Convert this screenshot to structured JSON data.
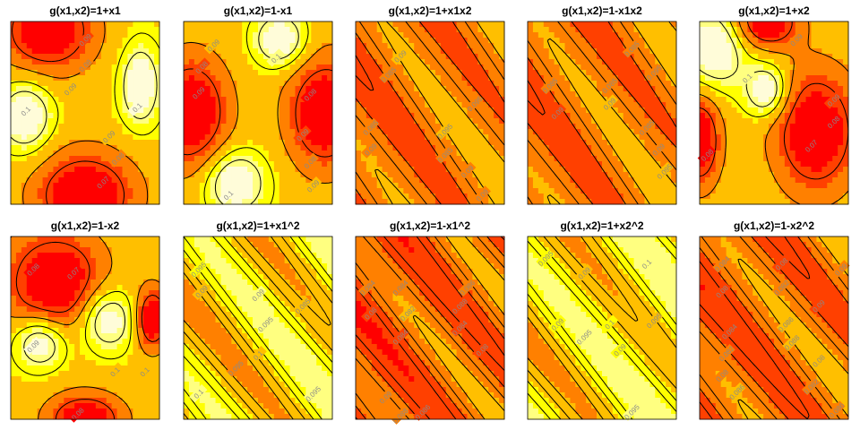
{
  "figure": {
    "palette": [
      "#ff0000",
      "#ff4000",
      "#ff8000",
      "#ffbf00",
      "#ffff00",
      "#ffff80",
      "#fffcd9"
    ],
    "contour_color": "#000000",
    "label_color": "#8a8a8a"
  },
  "chart_data": [
    {
      "type": "heatmap",
      "title": "g(x1,x2)=1+x1",
      "pattern": "blobs",
      "warm": [
        [
          0.25,
          0.05,
          0.22,
          0.16
        ],
        [
          0.5,
          0.95,
          0.24,
          0.17
        ]
      ],
      "cool": [
        [
          0.1,
          0.52,
          0.12,
          0.13
        ],
        [
          0.87,
          0.35,
          0.09,
          0.15
        ]
      ],
      "contour_labels": [
        {
          "text": "0.09",
          "at": [
            0.5,
            0.1
          ]
        },
        {
          "text": "0.08",
          "at": [
            0.5,
            0.24
          ]
        },
        {
          "text": "0.09",
          "at": [
            0.4,
            0.37
          ]
        },
        {
          "text": "0.1",
          "at": [
            0.1,
            0.49
          ]
        },
        {
          "text": "0.1",
          "at": [
            0.85,
            0.47
          ]
        },
        {
          "text": "0.09",
          "at": [
            0.66,
            0.63
          ]
        },
        {
          "text": "0.08",
          "at": [
            0.72,
            0.75
          ]
        },
        {
          "text": "0.07",
          "at": [
            0.62,
            0.88
          ]
        }
      ]
    },
    {
      "type": "heatmap",
      "title": "g(x1,x2)=1-x1",
      "pattern": "blobs",
      "warm": [
        [
          0.05,
          0.5,
          0.18,
          0.22
        ],
        [
          0.95,
          0.5,
          0.18,
          0.22
        ]
      ],
      "cool": [
        [
          0.65,
          0.1,
          0.12,
          0.1
        ],
        [
          0.35,
          0.88,
          0.14,
          0.12
        ]
      ],
      "contour_labels": [
        {
          "text": "0.09",
          "at": [
            0.2,
            0.13
          ]
        },
        {
          "text": "0.1",
          "at": [
            0.62,
            0.2
          ]
        },
        {
          "text": "0.08",
          "at": [
            0.12,
            0.25
          ]
        },
        {
          "text": "0.09",
          "at": [
            0.1,
            0.39
          ]
        },
        {
          "text": "0.08",
          "at": [
            0.85,
            0.4
          ]
        },
        {
          "text": "0.09",
          "at": [
            0.8,
            0.62
          ]
        },
        {
          "text": "0.08",
          "at": [
            0.85,
            0.77
          ]
        },
        {
          "text": "0.09",
          "at": [
            0.87,
            0.9
          ]
        },
        {
          "text": "0.1",
          "at": [
            0.3,
            0.95
          ]
        }
      ]
    },
    {
      "type": "heatmap",
      "title": "g(x1,x2)=1+x1x2",
      "pattern": "diagonal",
      "base": 0.35,
      "amp": 0.12,
      "freq": 1.3,
      "phase": 0.2,
      "slope": 0.9,
      "contour_labels": [
        {
          "text": "0.09",
          "at": [
            0.3,
            0.19
          ]
        },
        {
          "text": "0.085",
          "at": [
            0.22,
            0.29
          ]
        },
        {
          "text": "0.095",
          "at": [
            0.8,
            0.45
          ]
        },
        {
          "text": "0.085",
          "at": [
            0.1,
            0.58
          ]
        },
        {
          "text": "0.09",
          "at": [
            0.1,
            0.7
          ]
        },
        {
          "text": "0.095",
          "at": [
            0.6,
            0.6
          ]
        },
        {
          "text": "0.085",
          "at": [
            0.6,
            0.73
          ]
        },
        {
          "text": "0.09",
          "at": [
            0.75,
            0.82
          ]
        },
        {
          "text": "0.09",
          "at": [
            0.85,
            0.95
          ]
        }
      ]
    },
    {
      "type": "heatmap",
      "title": "g(x1,x2)=1-x1x2",
      "pattern": "diagonal",
      "base": 0.35,
      "amp": 0.12,
      "freq": 1.3,
      "phase": 1.2,
      "slope": 0.9,
      "contour_labels": [
        {
          "text": "0.085",
          "at": [
            0.15,
            0.35
          ]
        },
        {
          "text": "0.09",
          "at": [
            0.2,
            0.5
          ]
        },
        {
          "text": "0.085",
          "at": [
            0.7,
            0.15
          ]
        },
        {
          "text": "0.095",
          "at": [
            0.85,
            0.28
          ]
        },
        {
          "text": "0.085",
          "at": [
            0.55,
            0.35
          ]
        },
        {
          "text": "0.09",
          "at": [
            0.55,
            0.45
          ]
        },
        {
          "text": "0.085",
          "at": [
            0.8,
            0.58
          ]
        },
        {
          "text": "0.09",
          "at": [
            0.88,
            0.7
          ]
        },
        {
          "text": "0.095",
          "at": [
            0.92,
            0.82
          ]
        }
      ]
    },
    {
      "type": "heatmap",
      "title": "g(x1,x2)=1+x2",
      "pattern": "blobs",
      "warm": [
        [
          0.78,
          0.6,
          0.2,
          0.24
        ],
        [
          0.0,
          0.65,
          0.1,
          0.18
        ],
        [
          0.45,
          0.0,
          0.15,
          0.1
        ]
      ],
      "cool": [
        [
          0.1,
          0.15,
          0.14,
          0.15
        ],
        [
          0.45,
          0.38,
          0.1,
          0.1
        ]
      ],
      "contour_labels": [
        {
          "text": "0.09",
          "at": [
            0.65,
            0.1
          ]
        },
        {
          "text": "0.1",
          "at": [
            0.32,
            0.31
          ]
        },
        {
          "text": "0.09",
          "at": [
            0.9,
            0.43
          ]
        },
        {
          "text": "0.08",
          "at": [
            0.9,
            0.55
          ]
        },
        {
          "text": "0.08",
          "at": [
            0.05,
            0.73
          ]
        },
        {
          "text": "0.07",
          "at": [
            0.75,
            0.68
          ]
        }
      ]
    },
    {
      "type": "heatmap",
      "title": "g(x1,x2)=1-x2",
      "pattern": "blobs",
      "warm": [
        [
          0.3,
          0.25,
          0.24,
          0.2
        ],
        [
          0.5,
          1.0,
          0.18,
          0.1
        ],
        [
          0.95,
          0.45,
          0.08,
          0.12
        ]
      ],
      "cool": [
        [
          0.65,
          0.45,
          0.13,
          0.12
        ],
        [
          0.2,
          0.58,
          0.12,
          0.1
        ]
      ],
      "contour_labels": [
        {
          "text": "0.08",
          "at": [
            0.15,
            0.18
          ]
        },
        {
          "text": "0.07",
          "at": [
            0.42,
            0.2
          ]
        },
        {
          "text": "0.09",
          "at": [
            0.15,
            0.6
          ]
        },
        {
          "text": "0.1",
          "at": [
            0.7,
            0.74
          ]
        },
        {
          "text": "0.1",
          "at": [
            0.9,
            0.74
          ]
        },
        {
          "text": "0.08",
          "at": [
            0.45,
            0.97
          ]
        }
      ]
    },
    {
      "type": "heatmap",
      "title": "g(x1,x2)=1+x1^2",
      "pattern": "diagonal",
      "base": 0.58,
      "amp": 0.18,
      "freq": 1.2,
      "phase": 0.9,
      "slope": 1.0,
      "contour_labels": [
        {
          "text": "0.095",
          "at": [
            0.1,
            0.18
          ]
        },
        {
          "text": "0.09",
          "at": [
            0.12,
            0.3
          ]
        },
        {
          "text": "0.09",
          "at": [
            0.5,
            0.32
          ]
        },
        {
          "text": "0.085",
          "at": [
            0.8,
            0.38
          ]
        },
        {
          "text": "0.095",
          "at": [
            0.55,
            0.48
          ]
        },
        {
          "text": "0.1",
          "at": [
            0.5,
            0.65
          ]
        },
        {
          "text": "0.095",
          "at": [
            0.35,
            0.72
          ]
        },
        {
          "text": "0.1",
          "at": [
            0.1,
            0.86
          ]
        },
        {
          "text": "0.095",
          "at": [
            0.87,
            0.86
          ]
        }
      ]
    },
    {
      "type": "heatmap",
      "title": "g(x1,x2)=1-x1^2",
      "pattern": "diagonal",
      "base": 0.3,
      "amp": 0.15,
      "freq": 1.4,
      "phase": 2.0,
      "slope": 1.0,
      "contour_labels": [
        {
          "text": "0.084",
          "at": [
            0.08,
            0.28
          ]
        },
        {
          "text": "0.084",
          "at": [
            0.3,
            0.28
          ]
        },
        {
          "text": "0.08",
          "at": [
            0.1,
            0.42
          ]
        },
        {
          "text": "0.082",
          "at": [
            0.35,
            0.42
          ]
        },
        {
          "text": "0.084",
          "at": [
            0.3,
            0.55
          ]
        },
        {
          "text": "0.086",
          "at": [
            0.75,
            0.28
          ]
        },
        {
          "text": "0.088",
          "at": [
            0.7,
            0.38
          ]
        },
        {
          "text": "0.084",
          "at": [
            0.7,
            0.5
          ]
        },
        {
          "text": "0.08",
          "at": [
            0.85,
            0.62
          ]
        },
        {
          "text": "0.09",
          "at": [
            0.2,
            0.88
          ]
        },
        {
          "text": "0.086",
          "at": [
            0.45,
            0.96
          ]
        },
        {
          "text": "0.088",
          "at": [
            0.3,
            0.98
          ]
        }
      ]
    },
    {
      "type": "heatmap",
      "title": "g(x1,x2)=1+x2^2",
      "pattern": "diagonal",
      "base": 0.6,
      "amp": 0.18,
      "freq": 1.2,
      "phase": 2.6,
      "slope": 1.0,
      "contour_labels": [
        {
          "text": "0.095",
          "at": [
            0.12,
            0.12
          ]
        },
        {
          "text": "0.09",
          "at": [
            0.38,
            0.2
          ]
        },
        {
          "text": "0.1",
          "at": [
            0.8,
            0.15
          ]
        },
        {
          "text": "0.09",
          "at": [
            0.2,
            0.48
          ]
        },
        {
          "text": "0.095",
          "at": [
            0.38,
            0.55
          ]
        },
        {
          "text": "0.1",
          "at": [
            0.55,
            0.48
          ]
        },
        {
          "text": "0.09",
          "at": [
            0.62,
            0.62
          ]
        },
        {
          "text": "0.095",
          "at": [
            0.85,
            0.46
          ]
        },
        {
          "text": "0.095",
          "at": [
            0.7,
            0.96
          ]
        }
      ]
    },
    {
      "type": "heatmap",
      "title": "g(x1,x2)=1-x2^2",
      "pattern": "diagonal",
      "base": 0.32,
      "amp": 0.14,
      "freq": 1.3,
      "phase": 0.5,
      "slope": 1.0,
      "contour_labels": [
        {
          "text": "0.084",
          "at": [
            0.15,
            0.15
          ]
        },
        {
          "text": "0.08",
          "at": [
            0.15,
            0.3
          ]
        },
        {
          "text": "0.08",
          "at": [
            0.55,
            0.15
          ]
        },
        {
          "text": "0.082",
          "at": [
            0.55,
            0.28
          ]
        },
        {
          "text": "0.09",
          "at": [
            0.8,
            0.38
          ]
        },
        {
          "text": "0.09",
          "at": [
            0.95,
            0.18
          ]
        },
        {
          "text": "0.086",
          "at": [
            0.58,
            0.48
          ]
        },
        {
          "text": "0.088",
          "at": [
            0.62,
            0.58
          ]
        },
        {
          "text": "0.084",
          "at": [
            0.2,
            0.52
          ]
        },
        {
          "text": "0.082",
          "at": [
            0.18,
            0.64
          ]
        },
        {
          "text": "0.08",
          "at": [
            0.15,
            0.76
          ]
        },
        {
          "text": "0.086",
          "at": [
            0.25,
            0.85
          ]
        },
        {
          "text": "0.08",
          "at": [
            0.8,
            0.68
          ]
        },
        {
          "text": "0.082",
          "at": [
            0.75,
            0.82
          ]
        },
        {
          "text": "0.086",
          "at": [
            0.92,
            0.95
          ]
        }
      ]
    }
  ]
}
